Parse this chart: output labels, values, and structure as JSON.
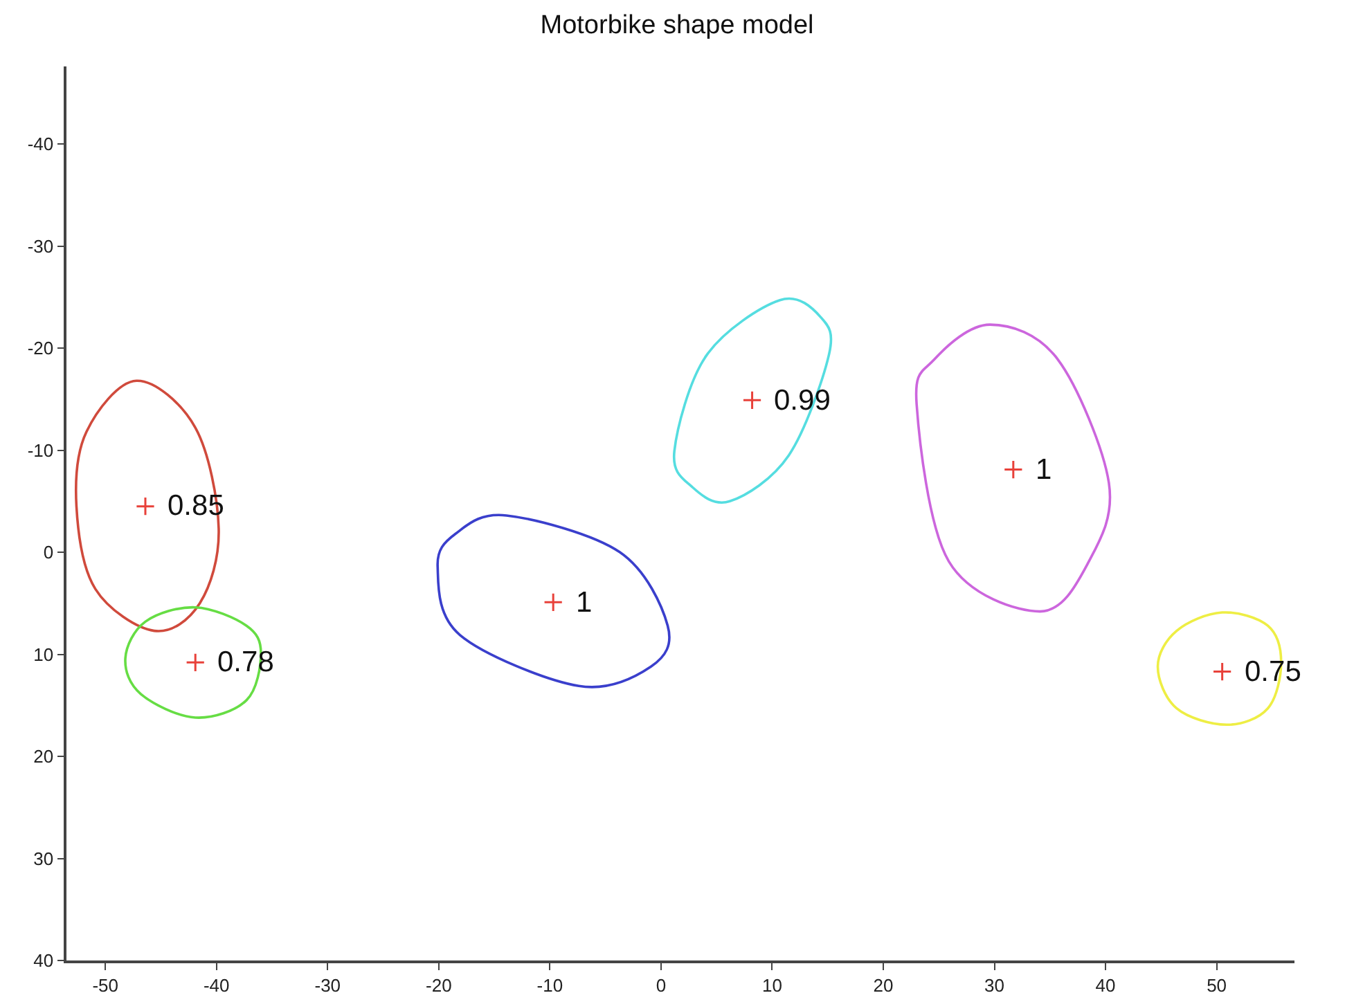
{
  "chart_data": {
    "type": "scatter",
    "title": "Motorbike shape model",
    "xlim": [
      -53.5,
      57
    ],
    "xticks": [
      -50,
      -40,
      -30,
      -20,
      -10,
      0,
      10,
      20,
      30,
      40,
      50
    ],
    "ylim": [
      40,
      -47.6
    ],
    "yticks": [
      -40,
      -30,
      -20,
      -10,
      0,
      10,
      20,
      30,
      40
    ],
    "grid": false,
    "marker": "cross",
    "series": [
      {
        "color": "#e8413a",
        "x": [
          -46.4,
          -41.9,
          -9.7,
          8.2,
          31.7,
          50.5
        ],
        "values": [
          -4.5,
          10.8,
          4.9,
          -14.9,
          -8.1,
          11.7
        ]
      }
    ],
    "annotations": [
      {
        "text": "0.85",
        "x": -46.4,
        "y": -4.5
      },
      {
        "text": "0.78",
        "x": -41.9,
        "y": 10.8
      },
      {
        "text": "1",
        "x": -9.7,
        "y": 4.9
      },
      {
        "text": "0.99",
        "x": 8.2,
        "y": -14.9
      },
      {
        "text": "1",
        "x": 31.7,
        "y": -8.1
      },
      {
        "text": "0.75",
        "x": 50.5,
        "y": 11.7
      }
    ]
  }
}
